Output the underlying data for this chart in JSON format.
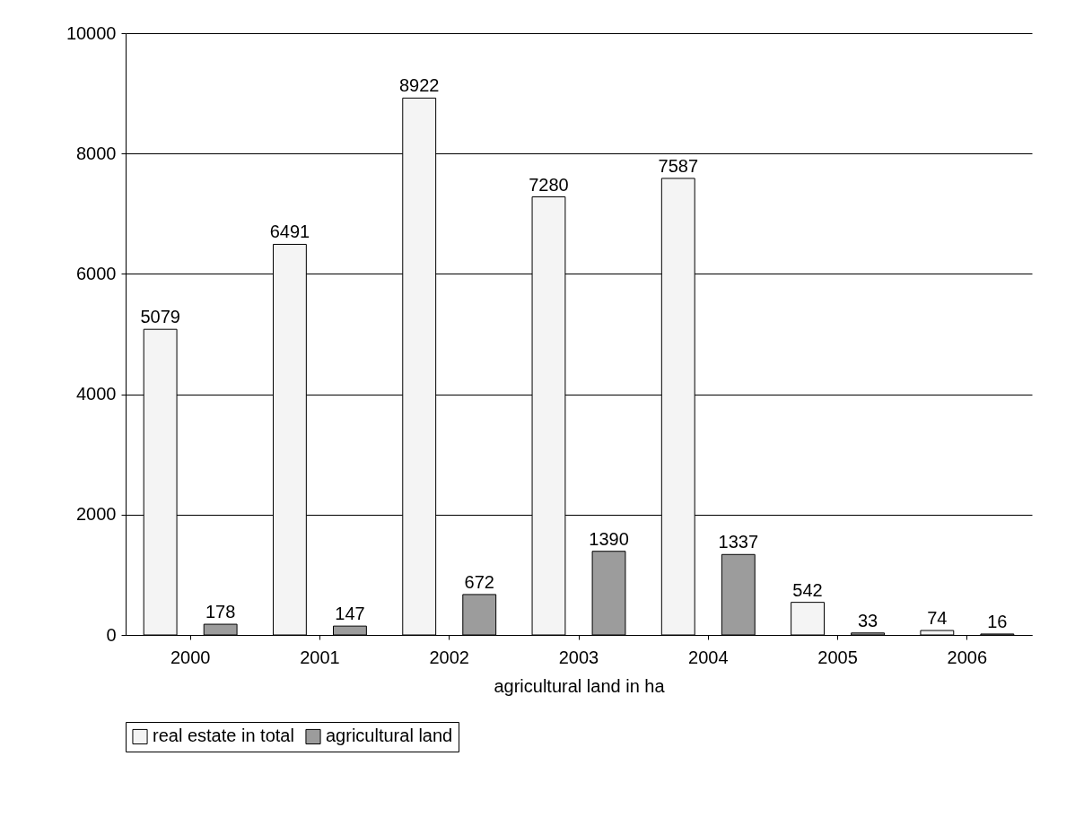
{
  "chart_data": {
    "type": "bar",
    "xlabel": "agricultural land in ha",
    "categories": [
      "2000",
      "2001",
      "2002",
      "2003",
      "2004",
      "2005",
      "2006"
    ],
    "series": [
      {
        "name": "real estate in total",
        "color": "#f4f4f4",
        "values": [
          5079,
          6491,
          8922,
          7280,
          7587,
          542,
          74
        ]
      },
      {
        "name": "agricultural land",
        "color": "#9c9c9c",
        "values": [
          178,
          147,
          672,
          1390,
          1337,
          33,
          16
        ]
      }
    ],
    "ylim": [
      0,
      10000
    ],
    "yticks": [
      0,
      2000,
      4000,
      6000,
      8000,
      10000
    ],
    "grid": "y",
    "legend": "bottom",
    "data_labels": true
  }
}
